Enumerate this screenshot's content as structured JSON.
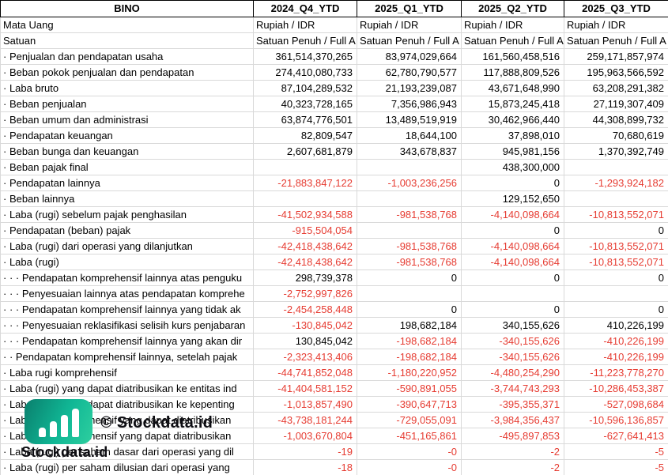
{
  "colors": {
    "negative": "#e63c32",
    "positive": "#000000",
    "grid": "#d9d9d9",
    "header_border": "#000000"
  },
  "table": {
    "header": [
      "BINO",
      "2024_Q4_YTD",
      "2025_Q1_YTD",
      "2025_Q2_YTD",
      "2025_Q3_YTD"
    ],
    "rows": [
      {
        "label": "Mata Uang",
        "text": true,
        "values": [
          "Rupiah / IDR",
          "Rupiah / IDR",
          "Rupiah / IDR",
          "Rupiah / IDR"
        ]
      },
      {
        "label": "Satuan",
        "text": true,
        "values": [
          "Satuan Penuh / Full A",
          "Satuan Penuh / Full A",
          "Satuan Penuh / Full A",
          "Satuan Penuh / Full A"
        ]
      },
      {
        "label": "· Penjualan dan pendapatan usaha",
        "values": [
          "361,514,370,265",
          "83,974,029,664",
          "161,560,458,516",
          "259,171,857,974"
        ]
      },
      {
        "label": "· Beban pokok penjualan dan pendapatan",
        "values": [
          "274,410,080,733",
          "62,780,790,577",
          "117,888,809,526",
          "195,963,566,592"
        ]
      },
      {
        "label": "· Laba bruto",
        "values": [
          "87,104,289,532",
          "21,193,239,087",
          "43,671,648,990",
          "63,208,291,382"
        ]
      },
      {
        "label": "· Beban penjualan",
        "values": [
          "40,323,728,165",
          "7,356,986,943",
          "15,873,245,418",
          "27,119,307,409"
        ]
      },
      {
        "label": "· Beban umum dan administrasi",
        "values": [
          "63,874,776,501",
          "13,489,519,919",
          "30,462,966,440",
          "44,308,899,732"
        ]
      },
      {
        "label": "· Pendapatan keuangan",
        "values": [
          "82,809,547",
          "18,644,100",
          "37,898,010",
          "70,680,619"
        ]
      },
      {
        "label": "· Beban bunga dan keuangan",
        "values": [
          "2,607,681,879",
          "343,678,837",
          "945,981,156",
          "1,370,392,749"
        ]
      },
      {
        "label": "· Beban pajak final",
        "values": [
          "",
          "",
          "438,300,000",
          ""
        ]
      },
      {
        "label": "· Pendapatan lainnya",
        "values": [
          "-21,883,847,122",
          "-1,003,236,256",
          "0",
          "-1,293,924,182"
        ]
      },
      {
        "label": "· Beban lainnya",
        "values": [
          "",
          "",
          "129,152,650",
          ""
        ]
      },
      {
        "label": "· Laba (rugi) sebelum pajak penghasilan",
        "values": [
          "-41,502,934,588",
          "-981,538,768",
          "-4,140,098,664",
          "-10,813,552,071"
        ]
      },
      {
        "label": "· Pendapatan (beban) pajak",
        "values": [
          "-915,504,054",
          "",
          "0",
          "0"
        ]
      },
      {
        "label": "· Laba (rugi) dari operasi yang dilanjutkan",
        "values": [
          "-42,418,438,642",
          "-981,538,768",
          "-4,140,098,664",
          "-10,813,552,071"
        ]
      },
      {
        "label": "· Laba (rugi)",
        "values": [
          "-42,418,438,642",
          "-981,538,768",
          "-4,140,098,664",
          "-10,813,552,071"
        ]
      },
      {
        "label": "· · · Pendapatan komprehensif lainnya atas penguku",
        "values": [
          "298,739,378",
          "0",
          "0",
          "0"
        ]
      },
      {
        "label": "· · · Penyesuaian lainnya atas pendapatan komprehe",
        "values": [
          "-2,752,997,826",
          "",
          "",
          ""
        ]
      },
      {
        "label": "· · · Pendapatan komprehensif lainnya yang tidak ak",
        "values": [
          "-2,454,258,448",
          "0",
          "0",
          "0"
        ]
      },
      {
        "label": "· · · Penyesuaian reklasifikasi selisih kurs penjabaran",
        "values": [
          "-130,845,042",
          "198,682,184",
          "340,155,626",
          "410,226,199"
        ]
      },
      {
        "label": "· · · Pendapatan komprehensif lainnya yang akan dir",
        "values": [
          "130,845,042",
          "-198,682,184",
          "-340,155,626",
          "-410,226,199"
        ]
      },
      {
        "label": "· · Pendapatan komprehensif lainnya, setelah pajak",
        "values": [
          "-2,323,413,406",
          "-198,682,184",
          "-340,155,626",
          "-410,226,199"
        ]
      },
      {
        "label": "· Laba rugi komprehensif",
        "values": [
          "-44,741,852,048",
          "-1,180,220,952",
          "-4,480,254,290",
          "-11,223,778,270"
        ]
      },
      {
        "label": "· Laba (rugi) yang dapat diatribusikan ke entitas ind",
        "values": [
          "-41,404,581,152",
          "-590,891,055",
          "-3,744,743,293",
          "-10,286,453,387"
        ]
      },
      {
        "label": "· Laba (rugi) yang dapat diatribusikan ke kepenting",
        "values": [
          "-1,013,857,490",
          "-390,647,713",
          "-395,355,371",
          "-527,098,684"
        ]
      },
      {
        "label": "· Laba rugi komprehensif yang dapat diatribusikan",
        "values": [
          "-43,738,181,244",
          "-729,055,091",
          "-3,984,356,437",
          "-10,596,136,857"
        ]
      },
      {
        "label": "· Laba rugi komprehensif yang dapat diatribusikan",
        "values": [
          "-1,003,670,804",
          "-451,165,861",
          "-495,897,853",
          "-627,641,413"
        ]
      },
      {
        "label": "· Laba (rugi) per saham dasar dari operasi yang dil",
        "values": [
          "-19",
          "-0",
          "-2",
          "-5"
        ]
      },
      {
        "label": "· Laba (rugi) per saham dilusian dari operasi yang",
        "values": [
          "-18",
          "-0",
          "-2",
          "-5"
        ]
      }
    ]
  },
  "watermark": {
    "copyright_text": "© Stockdata.id",
    "brand_text": "Stockdata.id",
    "logo_icon": "bar-chart-icon",
    "colors": {
      "teal_dark": "#0a7f6d",
      "teal": "#10b795",
      "teal_light": "#2ecf9f",
      "bars": "#ffffff",
      "text": "#0d0d12"
    }
  }
}
